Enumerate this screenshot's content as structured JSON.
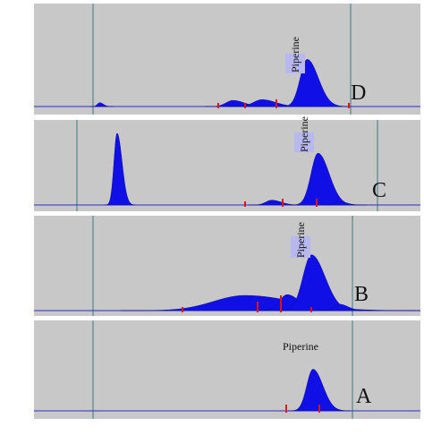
{
  "colors": {
    "panel_background": "#c8c8c8",
    "peak_fill": "#1010e6",
    "baseline": "#2b2bd0",
    "marker_lines": "#3e7a78",
    "integration_marks": "#e01010",
    "label_box": "#b8b8ee"
  },
  "chart_data": [
    {
      "type": "area",
      "panel": "D",
      "label": "D",
      "peak_label": "Piperine",
      "x_domain": [
        0,
        1
      ],
      "peaks": [
        {
          "x": 0.17,
          "height": 0.05,
          "width": 0.006
        },
        {
          "x": 0.515,
          "height": 0.08,
          "width": 0.018
        },
        {
          "x": 0.59,
          "height": 0.09,
          "width": 0.022
        },
        {
          "x": 0.707,
          "height": 0.62,
          "width": 0.018
        }
      ]
    },
    {
      "type": "area",
      "panel": "C",
      "label": "C",
      "peak_label": "Piperine",
      "x_domain": [
        0,
        1
      ],
      "peaks": [
        {
          "x": 0.215,
          "height": 0.9,
          "width": 0.008
        },
        {
          "x": 0.615,
          "height": 0.06,
          "width": 0.015
        },
        {
          "x": 0.735,
          "height": 0.65,
          "width": 0.018
        },
        {
          "x": 0.79,
          "height": 0.04,
          "width": 0.012
        }
      ]
    },
    {
      "type": "area",
      "panel": "B",
      "label": "B",
      "peak_label": "Piperine",
      "x_domain": [
        0,
        1
      ],
      "peaks": [
        {
          "x": 0.545,
          "height": 0.19,
          "width": 0.08
        },
        {
          "x": 0.655,
          "height": 0.2,
          "width": 0.02
        },
        {
          "x": 0.718,
          "height": 0.7,
          "width": 0.022
        },
        {
          "x": 0.79,
          "height": 0.08,
          "width": 0.014
        }
      ]
    },
    {
      "type": "area",
      "panel": "A",
      "label": "A",
      "peak_label": "Piperine",
      "x_domain": [
        0,
        1
      ],
      "peaks": [
        {
          "x": 0.722,
          "height": 0.62,
          "width": 0.016
        }
      ]
    }
  ]
}
